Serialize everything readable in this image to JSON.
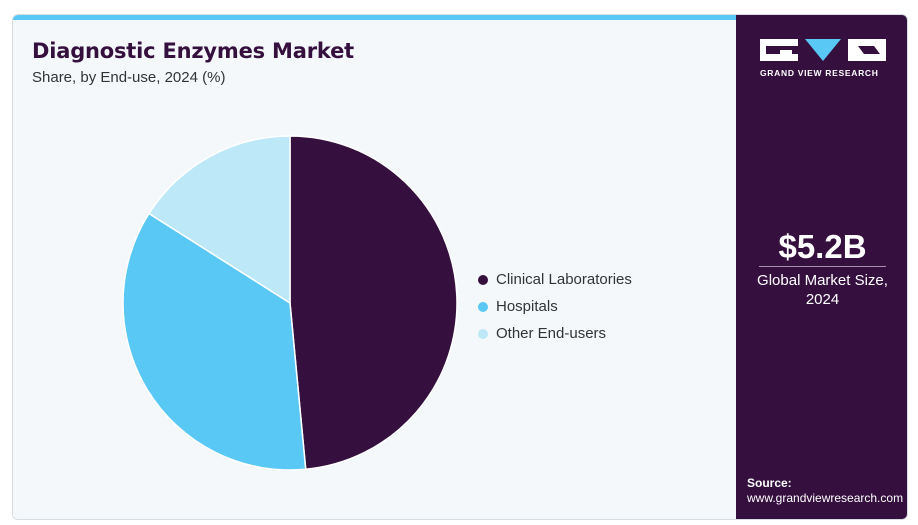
{
  "header": {
    "title": "Diagnostic Enzymes Market",
    "subtitle": "Share, by End-use, 2024 (%)"
  },
  "chart_data": {
    "type": "pie",
    "title": "Diagnostic Enzymes Market",
    "subtitle": "Share, by End-use, 2024 (%)",
    "categories": [
      "Clinical Laboratories",
      "Hospitals",
      "Other End-users"
    ],
    "values": [
      48.5,
      35.5,
      16.0
    ],
    "colors": [
      "#35103f",
      "#5ac8f5",
      "#bde8f8"
    ],
    "legend_position": "right"
  },
  "legend": {
    "items": [
      {
        "label": "Clinical Laboratories",
        "color": "#35103f"
      },
      {
        "label": "Hospitals",
        "color": "#5ac8f5"
      },
      {
        "label": "Other End-users",
        "color": "#bde8f8"
      }
    ]
  },
  "sidebar": {
    "logo_text": "GRAND VIEW RESEARCH",
    "stat_value": "$5.2B",
    "stat_label": "Global Market Size, 2024",
    "source_label": "Source:",
    "source_url": "www.grandviewresearch.com"
  },
  "colors": {
    "brand_dark": "#35103f",
    "accent": "#5ac8f5",
    "accent_light": "#bde8f8",
    "panel_bg": "#f4f8fb"
  }
}
